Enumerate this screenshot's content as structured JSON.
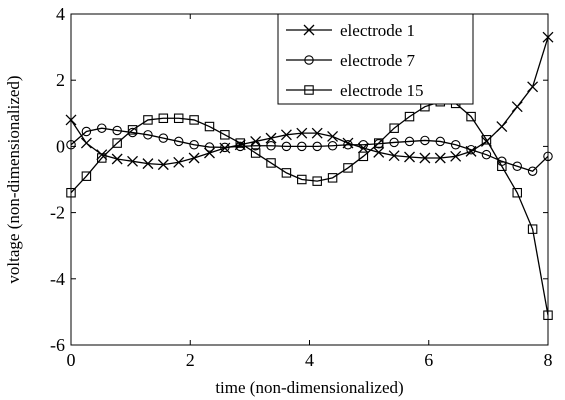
{
  "chart_data": {
    "type": "line",
    "title": "",
    "xlabel": "time (non-dimensionalized)",
    "ylabel": "voltage (non-dimensionalized)",
    "xlim": [
      0,
      8
    ],
    "ylim": [
      -6,
      4
    ],
    "xticks": [
      0,
      2,
      4,
      6,
      8
    ],
    "yticks": [
      -6,
      -4,
      -2,
      0,
      2,
      4
    ],
    "xtick_labels": [
      "0",
      "2",
      "4",
      "6",
      "8"
    ],
    "ytick_labels": [
      "-6",
      "-4",
      "-2",
      "0",
      "2",
      "4"
    ],
    "grid": false,
    "legend_position": "top-right",
    "line_color": "#000000",
    "series": [
      {
        "name": "electrode 1",
        "marker": "x",
        "x": [
          0,
          0.2581,
          0.5161,
          0.7742,
          1.0323,
          1.2903,
          1.5484,
          1.8065,
          2.0645,
          2.3226,
          2.5806,
          2.8387,
          3.0968,
          3.3548,
          3.6129,
          3.871,
          4.129,
          4.3871,
          4.6452,
          4.9032,
          5.1613,
          5.4194,
          5.6774,
          5.9355,
          6.1935,
          6.4516,
          6.7097,
          6.9677,
          7.2258,
          7.4839,
          7.7419,
          8
        ],
        "y": [
          0.8,
          0.1,
          -0.25,
          -0.38,
          -0.45,
          -0.52,
          -0.55,
          -0.48,
          -0.35,
          -0.2,
          -0.05,
          0.05,
          0.15,
          0.25,
          0.35,
          0.4,
          0.4,
          0.3,
          0.1,
          -0.05,
          -0.18,
          -0.28,
          -0.32,
          -0.35,
          -0.35,
          -0.3,
          -0.15,
          0.15,
          0.6,
          1.2,
          1.8,
          3.3
        ]
      },
      {
        "name": "electrode 7",
        "marker": "o",
        "x": [
          0,
          0.2581,
          0.5161,
          0.7742,
          1.0323,
          1.2903,
          1.5484,
          1.8065,
          2.0645,
          2.3226,
          2.5806,
          2.8387,
          3.0968,
          3.3548,
          3.6129,
          3.871,
          4.129,
          4.3871,
          4.6452,
          4.9032,
          5.1613,
          5.4194,
          5.6774,
          5.9355,
          6.1935,
          6.4516,
          6.7097,
          6.9677,
          7.2258,
          7.4839,
          7.7419,
          8
        ],
        "y": [
          0.05,
          0.45,
          0.55,
          0.48,
          0.42,
          0.35,
          0.25,
          0.15,
          0.05,
          -0.02,
          -0.03,
          0.0,
          0.02,
          0.02,
          0.0,
          0.0,
          0.0,
          0.02,
          0.05,
          0.05,
          0.08,
          0.12,
          0.15,
          0.18,
          0.15,
          0.05,
          -0.1,
          -0.25,
          -0.45,
          -0.6,
          -0.75,
          -0.3
        ]
      },
      {
        "name": "electrode 15",
        "marker": "square",
        "x": [
          0,
          0.2581,
          0.5161,
          0.7742,
          1.0323,
          1.2903,
          1.5484,
          1.8065,
          2.0645,
          2.3226,
          2.5806,
          2.8387,
          3.0968,
          3.3548,
          3.6129,
          3.871,
          4.129,
          4.3871,
          4.6452,
          4.9032,
          5.1613,
          5.4194,
          5.6774,
          5.9355,
          6.1935,
          6.4516,
          6.7097,
          6.9677,
          7.2258,
          7.4839,
          7.7419,
          8
        ],
        "y": [
          -1.4,
          -0.9,
          -0.35,
          0.1,
          0.5,
          0.8,
          0.85,
          0.85,
          0.8,
          0.6,
          0.35,
          0.1,
          -0.2,
          -0.5,
          -0.8,
          -1.0,
          -1.05,
          -0.95,
          -0.65,
          -0.3,
          0.1,
          0.55,
          0.9,
          1.2,
          1.35,
          1.3,
          0.9,
          0.2,
          -0.6,
          -1.4,
          -2.5,
          -5.1
        ]
      }
    ]
  }
}
